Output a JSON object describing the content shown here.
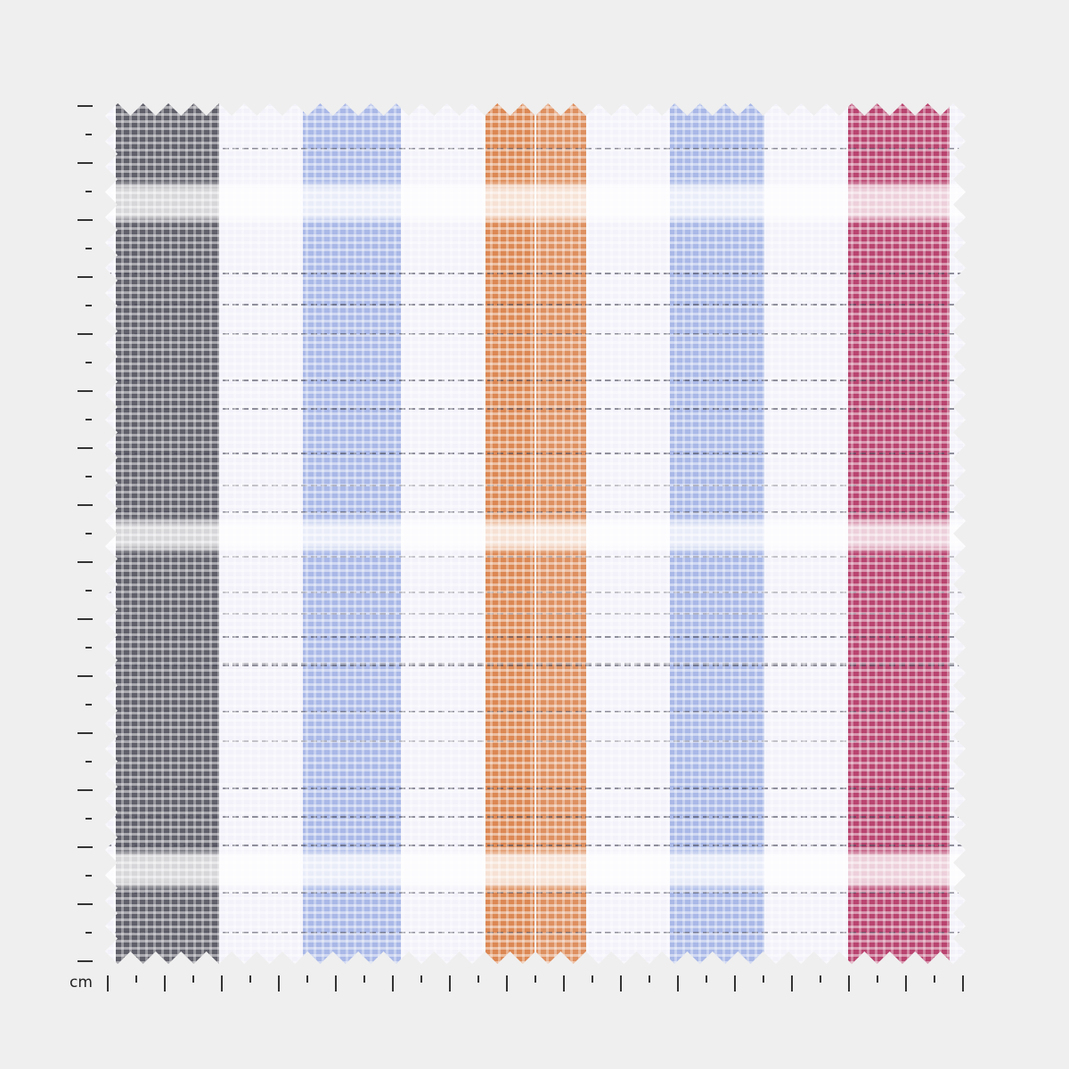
{
  "ruler": {
    "unit_label": "cm"
  },
  "fabric": {
    "pattern": "plaid",
    "base_color": "#f3f2fa",
    "stripe_colors": {
      "charcoal": "#4a4a55",
      "blue": "#8ea3e0",
      "orange": "#d9783a",
      "crimson": "#b02a5a",
      "line": "#4c4c5c"
    }
  }
}
